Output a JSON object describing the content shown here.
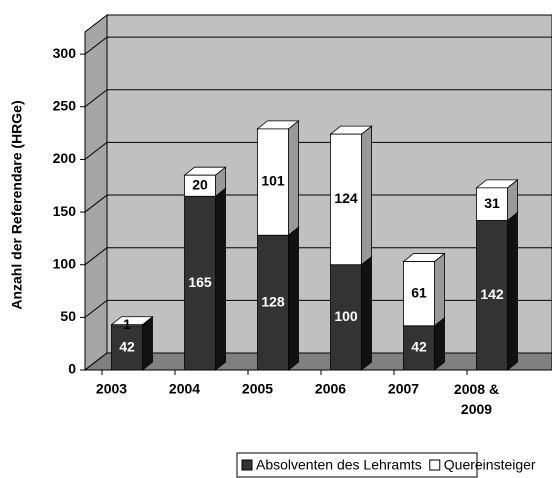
{
  "chart_data": {
    "type": "bar3d_stacked",
    "y_label": "Anzahl der Referendare (HRGe)",
    "categories": [
      "2003",
      "2004",
      "2005",
      "2006",
      "2007",
      "2008 & 2009"
    ],
    "series": [
      {
        "name": "Absolventen des Lehramts",
        "color": "#333333",
        "values": [
          42,
          165,
          128,
          100,
          42,
          142
        ]
      },
      {
        "name": "Quereinsteiger",
        "color": "#ffffff",
        "values": [
          1,
          20,
          101,
          124,
          61,
          31
        ]
      }
    ],
    "ylim": [
      0,
      321
    ],
    "yticks": [
      0,
      50,
      100,
      150,
      200,
      250,
      300
    ],
    "grid": true,
    "legend": "bottom"
  }
}
